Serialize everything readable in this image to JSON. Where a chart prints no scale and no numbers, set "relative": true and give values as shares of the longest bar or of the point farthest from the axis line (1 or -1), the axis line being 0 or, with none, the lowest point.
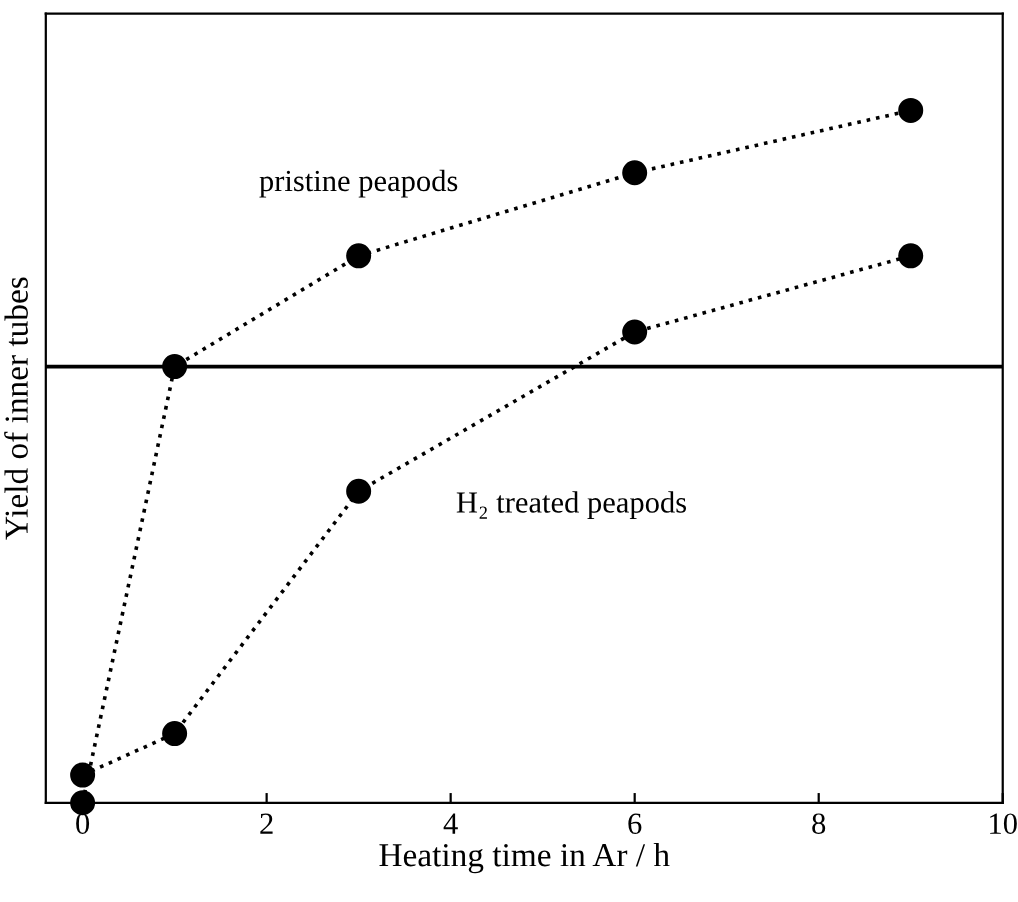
{
  "chart_data": {
    "type": "line",
    "relative": true,
    "xlabel": "Heating time in Ar / h",
    "ylabel": "Yield of inner tubes",
    "xlim": [
      -0.4,
      10
    ],
    "xticks": [
      0,
      2,
      4,
      6,
      8,
      10
    ],
    "tick_labels": "x",
    "grid": false,
    "legend": false,
    "marker": "circle",
    "line_style": "dotted",
    "series": [
      {
        "name": "pristine peapods",
        "color": "#000000",
        "x": [
          0,
          1,
          3,
          6,
          9
        ],
        "values": [
          0,
          0.63,
          0.79,
          0.91,
          1.0
        ]
      },
      {
        "name": "H₂ treated peapods",
        "color": "#000000",
        "x": [
          0,
          1,
          3,
          6,
          9
        ],
        "values": [
          0.04,
          0.1,
          0.45,
          0.68,
          0.79
        ]
      }
    ],
    "ref_lines": [
      {
        "axis": "y",
        "value": 0.63,
        "label": null,
        "color": "#000000",
        "line_style": "solid"
      }
    ]
  }
}
